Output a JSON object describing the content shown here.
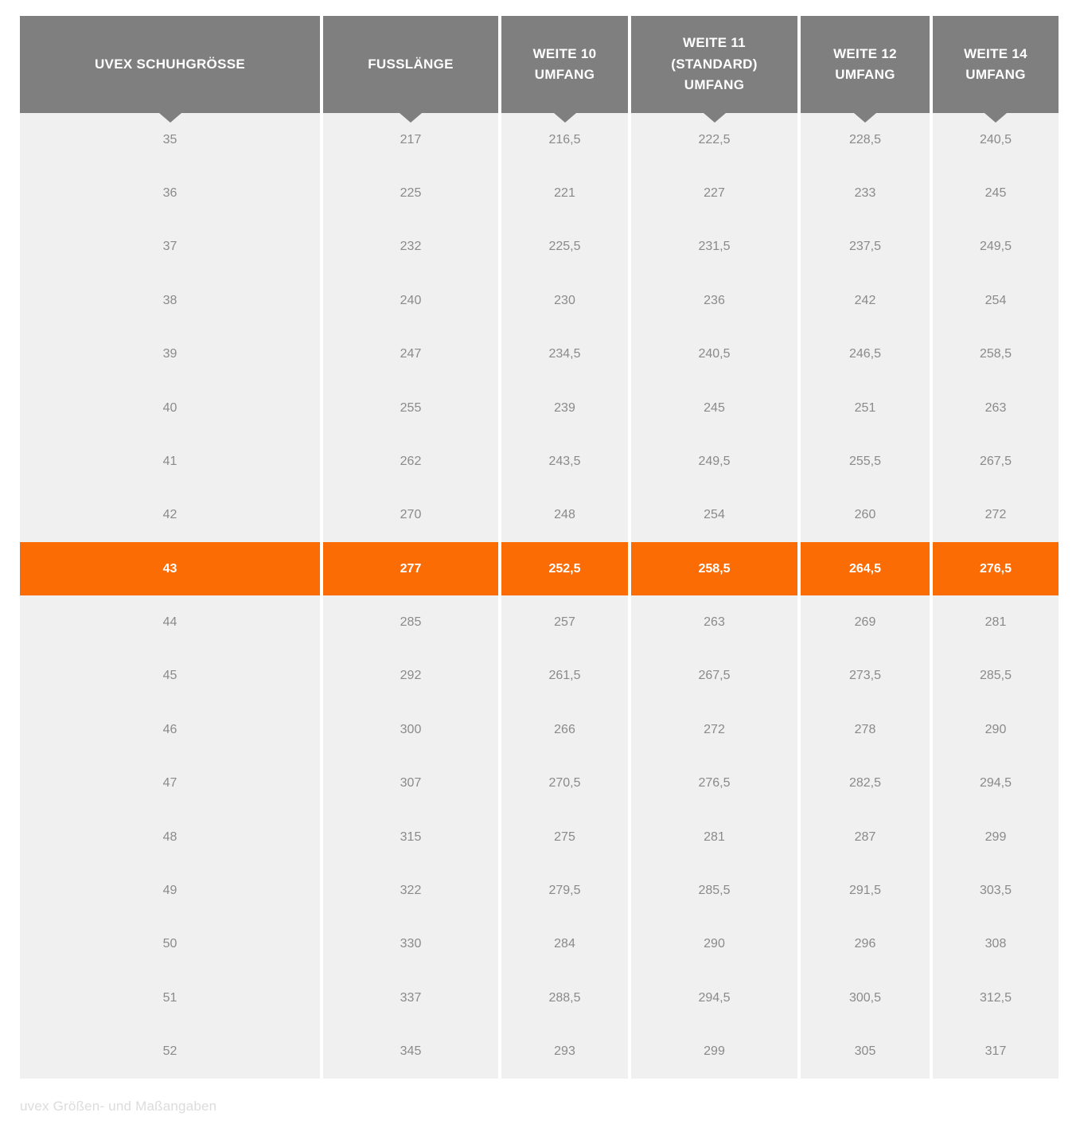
{
  "chart_data": {
    "type": "table",
    "columns": [
      "UVEX SCHUHGRÖSSE",
      "FUSSLÄNGE",
      "WEITE 10 UMFANG",
      "WEITE 11 (STANDARD) UMFANG",
      "WEITE 12 UMFANG",
      "WEITE 14 UMFANG"
    ],
    "highlighted_row_size": "43",
    "rows": [
      [
        "35",
        "217",
        "216,5",
        "222,5",
        "228,5",
        "240,5"
      ],
      [
        "36",
        "225",
        "221",
        "227",
        "233",
        "245"
      ],
      [
        "37",
        "232",
        "225,5",
        "231,5",
        "237,5",
        "249,5"
      ],
      [
        "38",
        "240",
        "230",
        "236",
        "242",
        "254"
      ],
      [
        "39",
        "247",
        "234,5",
        "240,5",
        "246,5",
        "258,5"
      ],
      [
        "40",
        "255",
        "239",
        "245",
        "251",
        "263"
      ],
      [
        "41",
        "262",
        "243,5",
        "249,5",
        "255,5",
        "267,5"
      ],
      [
        "42",
        "270",
        "248",
        "254",
        "260",
        "272"
      ],
      [
        "43",
        "277",
        "252,5",
        "258,5",
        "264,5",
        "276,5"
      ],
      [
        "44",
        "285",
        "257",
        "263",
        "269",
        "281"
      ],
      [
        "45",
        "292",
        "261,5",
        "267,5",
        "273,5",
        "285,5"
      ],
      [
        "46",
        "300",
        "266",
        "272",
        "278",
        "290"
      ],
      [
        "47",
        "307",
        "270,5",
        "276,5",
        "282,5",
        "294,5"
      ],
      [
        "48",
        "315",
        "275",
        "281",
        "287",
        "299"
      ],
      [
        "49",
        "322",
        "279,5",
        "285,5",
        "291,5",
        "303,5"
      ],
      [
        "50",
        "330",
        "284",
        "290",
        "296",
        "308"
      ],
      [
        "51",
        "337",
        "288,5",
        "294,5",
        "300,5",
        "312,5"
      ],
      [
        "52",
        "345",
        "293",
        "299",
        "305",
        "317"
      ]
    ]
  },
  "table": {
    "headers": [
      {
        "label": "UVEX SCHUHGRÖSSE"
      },
      {
        "label": "FUSSLÄNGE"
      },
      {
        "label": "WEITE 10\nUMFANG"
      },
      {
        "label": "WEITE 11\n(STANDARD)\nUMFANG"
      },
      {
        "label": "WEITE 12\nUMFANG"
      },
      {
        "label": "WEITE 14\nUMFANG"
      }
    ],
    "rows": [
      {
        "size": "35",
        "values": [
          "217",
          "216,5",
          "222,5",
          "228,5",
          "240,5"
        ],
        "highlighted": false
      },
      {
        "size": "36",
        "values": [
          "225",
          "221",
          "227",
          "233",
          "245"
        ],
        "highlighted": false
      },
      {
        "size": "37",
        "values": [
          "232",
          "225,5",
          "231,5",
          "237,5",
          "249,5"
        ],
        "highlighted": false
      },
      {
        "size": "38",
        "values": [
          "240",
          "230",
          "236",
          "242",
          "254"
        ],
        "highlighted": false
      },
      {
        "size": "39",
        "values": [
          "247",
          "234,5",
          "240,5",
          "246,5",
          "258,5"
        ],
        "highlighted": false
      },
      {
        "size": "40",
        "values": [
          "255",
          "239",
          "245",
          "251",
          "263"
        ],
        "highlighted": false
      },
      {
        "size": "41",
        "values": [
          "262",
          "243,5",
          "249,5",
          "255,5",
          "267,5"
        ],
        "highlighted": false
      },
      {
        "size": "42",
        "values": [
          "270",
          "248",
          "254",
          "260",
          "272"
        ],
        "highlighted": false
      },
      {
        "size": "43",
        "values": [
          "277",
          "252,5",
          "258,5",
          "264,5",
          "276,5"
        ],
        "highlighted": true
      },
      {
        "size": "44",
        "values": [
          "285",
          "257",
          "263",
          "269",
          "281"
        ],
        "highlighted": false
      },
      {
        "size": "45",
        "values": [
          "292",
          "261,5",
          "267,5",
          "273,5",
          "285,5"
        ],
        "highlighted": false
      },
      {
        "size": "46",
        "values": [
          "300",
          "266",
          "272",
          "278",
          "290"
        ],
        "highlighted": false
      },
      {
        "size": "47",
        "values": [
          "307",
          "270,5",
          "276,5",
          "282,5",
          "294,5"
        ],
        "highlighted": false
      },
      {
        "size": "48",
        "values": [
          "315",
          "275",
          "281",
          "287",
          "299"
        ],
        "highlighted": false
      },
      {
        "size": "49",
        "values": [
          "322",
          "279,5",
          "285,5",
          "291,5",
          "303,5"
        ],
        "highlighted": false
      },
      {
        "size": "50",
        "values": [
          "330",
          "284",
          "290",
          "296",
          "308"
        ],
        "highlighted": false
      },
      {
        "size": "51",
        "values": [
          "337",
          "288,5",
          "294,5",
          "300,5",
          "312,5"
        ],
        "highlighted": false
      },
      {
        "size": "52",
        "values": [
          "345",
          "293",
          "299",
          "305",
          "317"
        ],
        "highlighted": false
      }
    ]
  },
  "caption": "uvex Größen- und Maßangaben",
  "colors": {
    "header_bg": "#7F7F7F",
    "header_text": "#FFFFFF",
    "row_bg": "#F0F0F0",
    "body_text": "#8A8A8A",
    "highlight_bg": "#FB6C05",
    "highlight_text": "#FFFFFF",
    "caption_text": "#DCDCDC",
    "page_bg": "#FFFFFF"
  }
}
